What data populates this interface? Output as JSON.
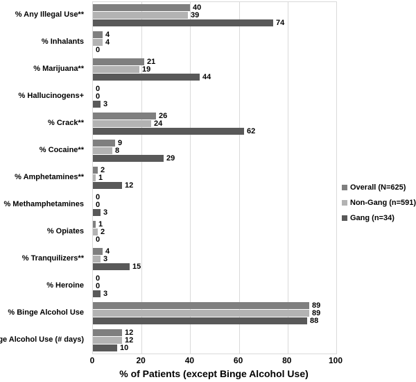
{
  "chart_data": {
    "type": "bar",
    "orientation": "horizontal",
    "title": "",
    "xlabel": "% of Patients (except Binge Alcohol Use)",
    "ylabel": "",
    "xlim": [
      0,
      100
    ],
    "xticks": [
      0,
      20,
      40,
      60,
      80,
      100
    ],
    "grid": "vertical",
    "legend_position": "right",
    "categories": [
      "% Any Illegal Use**",
      "% Inhalants",
      "% Marijuana**",
      "% Hallucinogens+",
      "% Crack**",
      "% Cocaine**",
      "% Amphetamines**",
      "% Methamphetamines",
      "% Opiates",
      "% Tranquilizers**",
      "% Heroine",
      "% Binge Alcohol Use",
      "Binge Alcohol Use (# days)"
    ],
    "series": [
      {
        "name": "Overall (N=625)",
        "color": "#7f7f7f",
        "values": [
          40,
          4,
          21,
          0,
          26,
          9,
          2,
          0,
          1,
          4,
          0,
          89,
          12
        ]
      },
      {
        "name": "Non-Gang (n=591)",
        "color": "#b3b3b3",
        "values": [
          39,
          4,
          19,
          0,
          24,
          8,
          1,
          0,
          2,
          3,
          0,
          89,
          12
        ]
      },
      {
        "name": "Gang (n=34)",
        "color": "#595959",
        "values": [
          74,
          0,
          44,
          3,
          62,
          29,
          12,
          3,
          0,
          15,
          3,
          88,
          10
        ]
      }
    ],
    "colors": {
      "gridline": "#d9d9d9",
      "plot_border": "#d9d9d9",
      "text": "#000000",
      "background": "#ffffff"
    }
  }
}
